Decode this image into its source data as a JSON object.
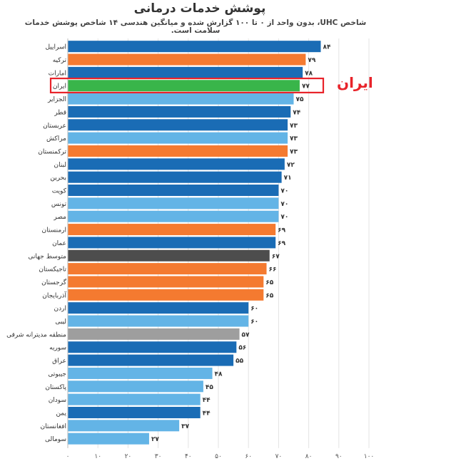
{
  "chart_data": {
    "type": "bar",
    "orientation": "horizontal",
    "title": "پوشش خدمات درمانی",
    "subtitle": "شاخص UHC، بدون واحد از ۰ تا ۱۰۰ گزارش شده و میانگین هندسی ۱۴ شاخص پوشش خدمات سلامت است.",
    "categories": [
      "اسراییل",
      "ترکیه",
      "امارات",
      "ایران",
      "الجزایر",
      "قطر",
      "عربستان",
      "مراکش",
      "ترکمنستان",
      "لبنان",
      "بحرین",
      "کویت",
      "تونس",
      "مصر",
      "ارمنستان",
      "عمان",
      "متوسط جهانی",
      "تاجیکستان",
      "گرجستان",
      "آذربایجان",
      "اردن",
      "لیبی",
      "منطقه مدیترانه شرقی",
      "سوریه",
      "عراق",
      "جیبوتی",
      "پاکستان",
      "سودان",
      "یمن",
      "افغانستان",
      "سومالی"
    ],
    "values": [
      84,
      79,
      78,
      77,
      75,
      74,
      73,
      73,
      73,
      72,
      71,
      70,
      70,
      70,
      69,
      69,
      67,
      66,
      65,
      65,
      60,
      60,
      57,
      56,
      55,
      48,
      45,
      44,
      44,
      37,
      27
    ],
    "value_labels": [
      "۸۴",
      "۷۹",
      "۷۸",
      "۷۷",
      "۷۵",
      "۷۴",
      "۷۳",
      "۷۳",
      "۷۳",
      "۷۲",
      "۷۱",
      "۷۰",
      "۷۰",
      "۷۰",
      "۶۹",
      "۶۹",
      "۶۷",
      "۶۶",
      "۶۵",
      "۶۵",
      "۶۰",
      "۶۰",
      "۵۷",
      "۵۶",
      "۵۵",
      "۴۸",
      "۴۵",
      "۴۴",
      "۴۴",
      "۳۷",
      "۲۷"
    ],
    "bar_colors": [
      "#1a6cb5",
      "#f47a30",
      "#1a6cb5",
      "#39b54a",
      "#63b4e6",
      "#1a6cb5",
      "#1a6cb5",
      "#63b4e6",
      "#f47a30",
      "#1a6cb5",
      "#1a6cb5",
      "#1a6cb5",
      "#63b4e6",
      "#63b4e6",
      "#f47a30",
      "#1a6cb5",
      "#4d4d4d",
      "#f47a30",
      "#f47a30",
      "#f47a30",
      "#1a6cb5",
      "#63b4e6",
      "#9e9e9e",
      "#1a6cb5",
      "#1a6cb5",
      "#63b4e6",
      "#63b4e6",
      "#63b4e6",
      "#1a6cb5",
      "#63b4e6",
      "#63b4e6"
    ],
    "xlim": [
      0,
      100
    ],
    "xticks": [
      0,
      10,
      20,
      30,
      40,
      50,
      60,
      70,
      80,
      90,
      100
    ],
    "xtick_labels": [
      "۰",
      "۱۰",
      "۲۰",
      "۳۰",
      "۴۰",
      "۵۰",
      "۶۰",
      "۷۰",
      "۸۰",
      "۹۰",
      "۱۰۰"
    ],
    "highlight": {
      "category": "ایران",
      "label": "ایران",
      "box_color": "#e8232a"
    }
  }
}
